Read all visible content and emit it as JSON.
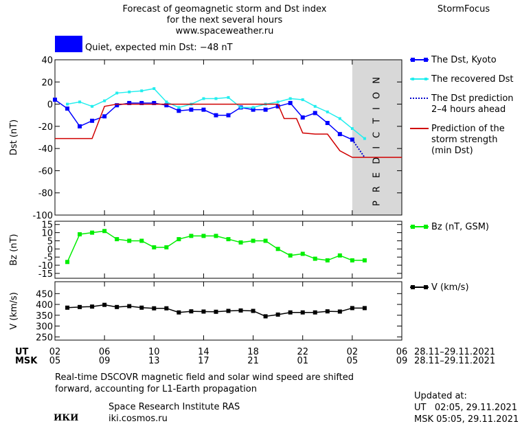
{
  "header": {
    "title_lines": [
      "Forecast of geomagnetic storm and Dst index",
      "for the next several hours",
      "www.spaceweather.ru"
    ],
    "brand": "StormFocus"
  },
  "status": {
    "text": "Quiet, expected min Dst: −48 nT",
    "color": "#0000ff"
  },
  "chart_data": [
    {
      "type": "line",
      "ylabel": "Dst (nT)",
      "xlim": [
        0,
        28
      ],
      "ylim": [
        -100,
        40
      ],
      "yticks": [
        40,
        20,
        0,
        -20,
        -40,
        -60,
        -80,
        -100
      ],
      "shaded": {
        "x": [
          24,
          28
        ],
        "label": "PREDICTION"
      },
      "series": [
        {
          "name": "The Dst, Kyoto",
          "color": "#0000ff",
          "marker": "square",
          "x": [
            0,
            1,
            2,
            3,
            4,
            5,
            6,
            7,
            8,
            9,
            10,
            11,
            12,
            13,
            14,
            15,
            16,
            17,
            18,
            19,
            20,
            21,
            22,
            23,
            24
          ],
          "values": [
            4,
            -4,
            -20,
            -15,
            -11,
            -1,
            1,
            1,
            1,
            -1,
            -6,
            -5,
            -5,
            -10,
            -10,
            -3,
            -5,
            -5,
            -2,
            1,
            -12,
            -8,
            -17,
            -27,
            -32
          ]
        },
        {
          "name": "The recovered Dst",
          "color": "#22eeee",
          "marker": "small-square",
          "x": [
            1,
            2,
            3,
            4,
            5,
            6,
            7,
            8,
            9,
            10,
            11,
            12,
            13,
            14,
            15,
            16,
            17,
            18,
            19,
            20,
            21,
            22,
            23,
            24,
            25
          ],
          "values": [
            0,
            2,
            -2,
            3,
            10,
            11,
            12,
            14,
            2,
            -3,
            0,
            5,
            5,
            6,
            -3,
            -3,
            0,
            2,
            5,
            4,
            -2,
            -7,
            -13,
            -22,
            -31
          ]
        },
        {
          "name": "The Dst prediction\n2–4 hours ahead",
          "color": "#0000cc",
          "line_style": "dotted",
          "x": [
            24,
            25
          ],
          "values": [
            -32,
            -48
          ]
        },
        {
          "name": "Prediction of the\nstorm strength\n(min Dst)",
          "color": "#d00000",
          "x": [
            0,
            3,
            4,
            5,
            15,
            16,
            18,
            18.5,
            19.5,
            20,
            21,
            22,
            23,
            24,
            28
          ],
          "values": [
            -31,
            -31,
            -2,
            0,
            0,
            0,
            0,
            -13,
            -13,
            -26,
            -27,
            -27,
            -42,
            -48,
            -48
          ]
        }
      ]
    },
    {
      "type": "line",
      "ylabel": "Bz (nT)",
      "xlim": [
        0,
        28
      ],
      "ylim": [
        -18,
        17
      ],
      "yticks": [
        15,
        10,
        5,
        0,
        -5,
        -10,
        -15
      ],
      "series": [
        {
          "name": "Bz (nT, GSM)",
          "color": "#00ee00",
          "marker": "square",
          "x": [
            1,
            2,
            3,
            4,
            5,
            6,
            7,
            8,
            9,
            10,
            11,
            12,
            13,
            14,
            15,
            16,
            17,
            18,
            19,
            20,
            21,
            22,
            23,
            24,
            25
          ],
          "values": [
            -8,
            9,
            10,
            11,
            6,
            5,
            5,
            1,
            1,
            6,
            8,
            8,
            8,
            6,
            4,
            5,
            5,
            0,
            -4,
            -3,
            -6,
            -7,
            -4,
            -7,
            -7
          ]
        }
      ]
    },
    {
      "type": "line",
      "ylabel": "V (km/s)",
      "xlim": [
        0,
        28
      ],
      "ylim": [
        235,
        505
      ],
      "yticks": [
        450,
        400,
        350,
        300,
        250
      ],
      "xticks": [
        {
          "value": 0,
          "label": "02"
        },
        {
          "value": 4,
          "label": "06"
        },
        {
          "value": 8,
          "label": "10"
        },
        {
          "value": 12,
          "label": "14"
        },
        {
          "value": 16,
          "label": "18"
        },
        {
          "value": 20,
          "label": "22"
        },
        {
          "value": 24,
          "label": "02"
        },
        {
          "value": 28,
          "label": "06"
        }
      ],
      "msk_ticks": [
        {
          "value": 0,
          "label": "05"
        },
        {
          "value": 4,
          "label": "09"
        },
        {
          "value": 8,
          "label": "13"
        },
        {
          "value": 12,
          "label": "17"
        },
        {
          "value": 16,
          "label": "21"
        },
        {
          "value": 20,
          "label": "01"
        },
        {
          "value": 24,
          "label": "05"
        },
        {
          "value": 28,
          "label": "09"
        }
      ],
      "series": [
        {
          "name": "V (km/s)",
          "color": "#000000",
          "marker": "square",
          "x": [
            1,
            2,
            3,
            4,
            5,
            6,
            7,
            8,
            9,
            10,
            11,
            12,
            13,
            14,
            15,
            16,
            17,
            18,
            19,
            20,
            21,
            22,
            23,
            24,
            25
          ],
          "values": [
            385,
            388,
            390,
            398,
            388,
            392,
            385,
            382,
            382,
            363,
            368,
            367,
            366,
            370,
            372,
            370,
            345,
            353,
            363,
            363,
            363,
            368,
            367,
            383,
            383
          ]
        }
      ]
    }
  ],
  "time_axis": {
    "ut_label": "UT",
    "msk_label": "MSK",
    "ut_range": "28.11–29.11.2021",
    "msk_range": "28.11–29.11.2021"
  },
  "footer": {
    "note_lines": [
      "Real-time DSCOVR magnetic field and solar wind speed are shifted",
      "forward, accounting for L1-Earth propagation"
    ],
    "logo": "ИКИ",
    "institute": "Space Research Institute RAS",
    "site": "iki.cosmos.ru",
    "updated_title": "Updated at:",
    "updated_ut": "UT   02:05, 29.11.2021",
    "updated_msk": "MSK 05:05, 29.11.2021"
  }
}
